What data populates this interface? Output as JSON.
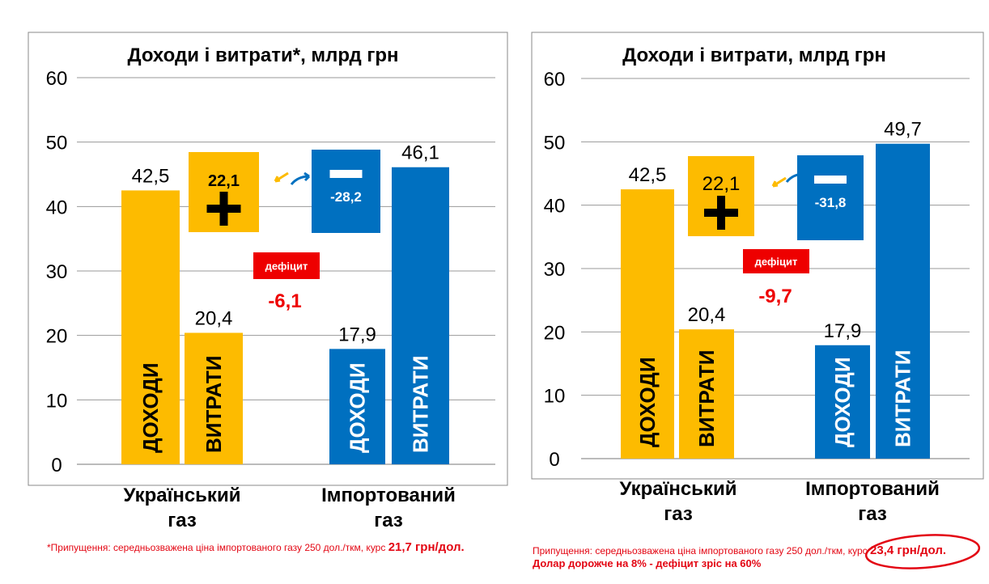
{
  "colors": {
    "domestic": "#FDBB00",
    "imported": "#0070C0",
    "deficit": "#EE0000",
    "grid": "#999999"
  },
  "chart_data": [
    {
      "type": "bar",
      "title": "Доходи і витрати*, млрд грн",
      "ylim": [
        0,
        60
      ],
      "yticks": [
        0,
        10,
        20,
        30,
        40,
        50,
        60
      ],
      "grid": true,
      "categories": [
        "Український газ",
        "Імпортований газ"
      ],
      "bars": [
        {
          "category": "Український газ",
          "label": "ДОХОДИ",
          "value": 42.5,
          "value_label": "42,5",
          "color": "#FDBB00"
        },
        {
          "category": "Український газ",
          "label": "ВИТРАТИ",
          "value": 20.4,
          "value_label": "20,4",
          "color": "#FDBB00"
        },
        {
          "category": "Імпортований газ",
          "label": "ДОХОДИ",
          "value": 17.9,
          "value_label": "17,9",
          "color": "#0070C0"
        },
        {
          "category": "Імпортований газ",
          "label": "ВИТРАТИ",
          "value": 46.1,
          "value_label": "46,1",
          "color": "#0070C0"
        }
      ],
      "annotations": {
        "plus_value": "22,1",
        "minus_value": "-28,2",
        "deficit_label": "дефіцит",
        "deficit_value": "-6,1"
      },
      "footnote": {
        "text": "*Припущення: середньозважена ціна імпортованого газу 250 дол./ткм, курс ",
        "rate": "21,7 грн/дол."
      }
    },
    {
      "type": "bar",
      "title": "Доходи і витрати, млрд грн",
      "ylim": [
        0,
        60
      ],
      "yticks": [
        0,
        10,
        20,
        30,
        40,
        50,
        60
      ],
      "grid": true,
      "categories": [
        "Український газ",
        "Імпортований газ"
      ],
      "bars": [
        {
          "category": "Український газ",
          "label": "ДОХОДИ",
          "value": 42.5,
          "value_label": "42,5",
          "color": "#FDBB00"
        },
        {
          "category": "Український газ",
          "label": "ВИТРАТИ",
          "value": 20.4,
          "value_label": "20,4",
          "color": "#FDBB00"
        },
        {
          "category": "Імпортований газ",
          "label": "ДОХОДИ",
          "value": 17.9,
          "value_label": "17,9",
          "color": "#0070C0"
        },
        {
          "category": "Імпортований газ",
          "label": "ВИТРАТИ",
          "value": 49.7,
          "value_label": "49,7",
          "color": "#0070C0"
        }
      ],
      "annotations": {
        "plus_value": "22,1",
        "minus_value": "-31,8",
        "deficit_label": "дефіцит",
        "deficit_value": "-9,7"
      },
      "footnote": {
        "text": "Припущення: середньозважена ціна імпортованого газу 250 дол./ткм, курс ",
        "rate": "23,4 грн/дол.",
        "line2": "Долар дорожче на 8% - дефіцит зріс на 60%"
      }
    }
  ],
  "category_lines": [
    [
      "Український",
      "газ"
    ],
    [
      "Імпортований",
      "газ"
    ]
  ]
}
